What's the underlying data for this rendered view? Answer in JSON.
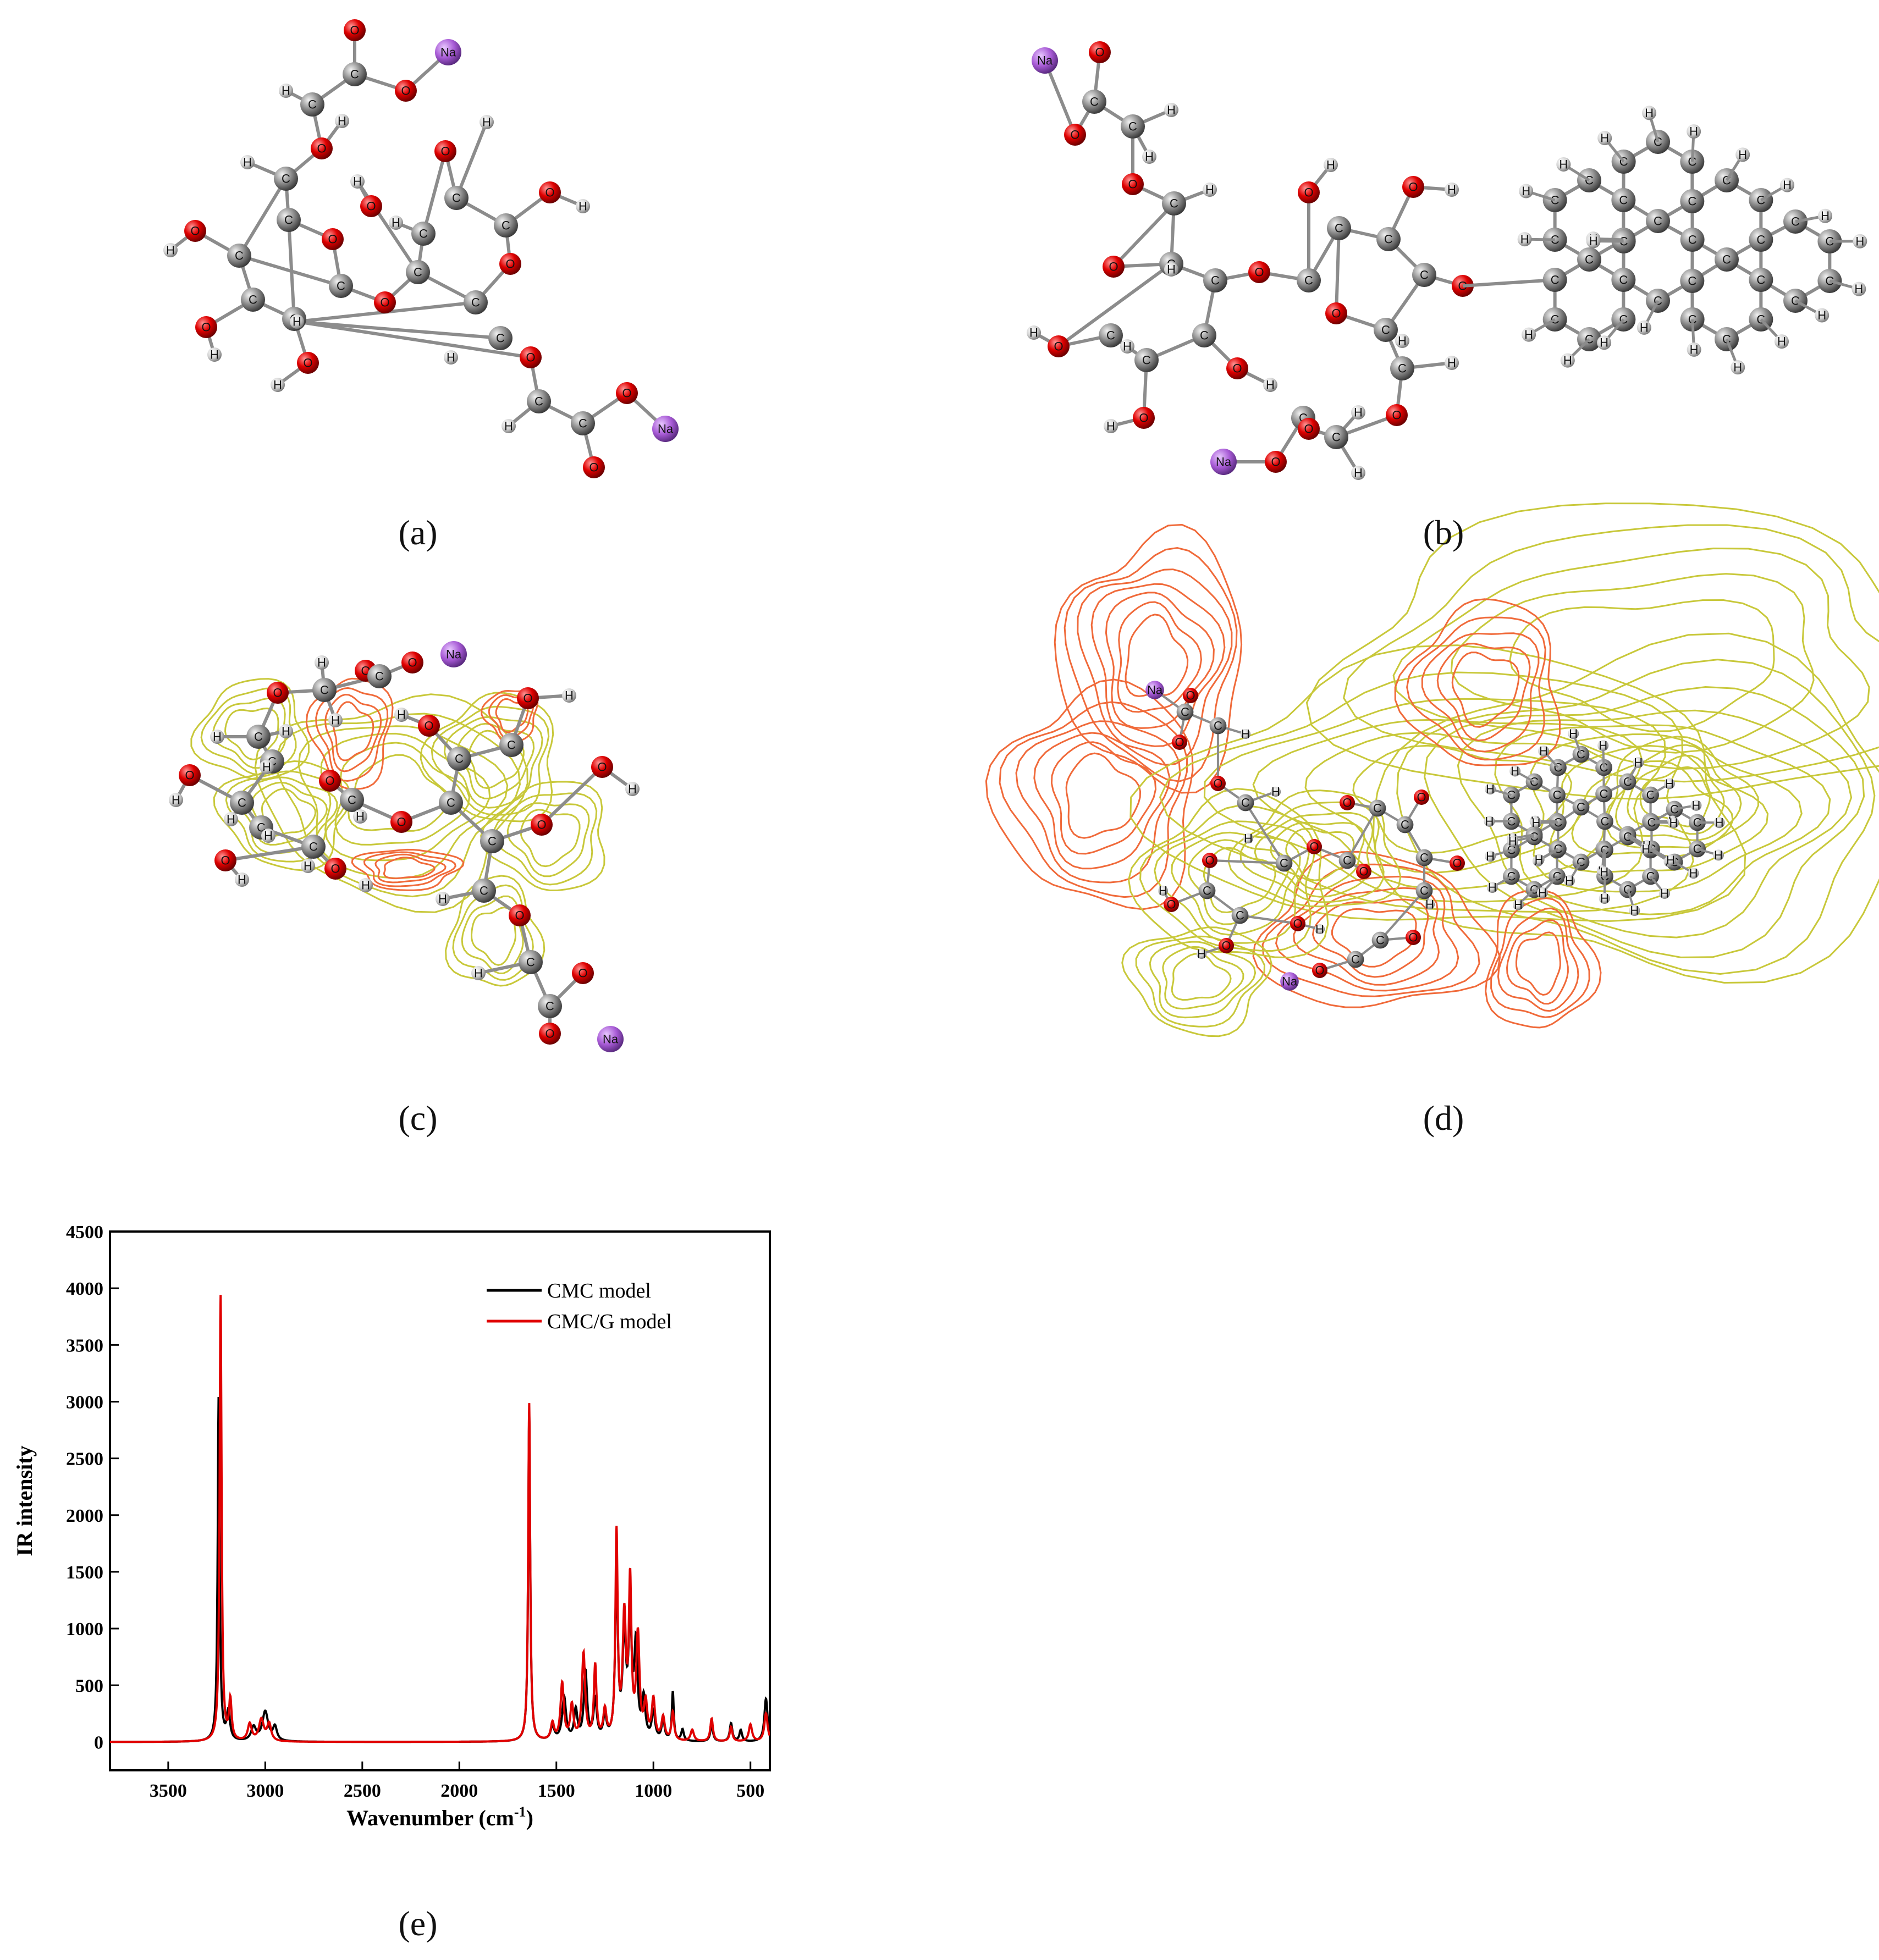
{
  "panels": {
    "a": {
      "label": "(a)"
    },
    "b": {
      "label": "(b)"
    },
    "c": {
      "label": "(c)"
    },
    "d": {
      "label": "(d)"
    },
    "e": {
      "label": "(e)"
    }
  },
  "atom_symbols": {
    "carbon": "C",
    "oxygen": "O",
    "hydrogen": "H",
    "sodium": "Na"
  },
  "atom_colors": {
    "carbon": "#7a7a7a",
    "oxygen": "#e00000",
    "hydrogen": "#d8d8d8",
    "sodium": "#a85bd6"
  },
  "contour_colors": {
    "positive": "#c8c83a",
    "negative": "#f06a3a"
  },
  "chart_data": {
    "type": "line",
    "xlabel": "Wavenumber (cm-1)",
    "xlabel_main": "Wavenumber (cm",
    "xlabel_sup": "-1",
    "xlabel_close": ")",
    "ylabel": "IR intensity",
    "xlim": [
      3800,
      400
    ],
    "ylim": [
      -250,
      4500
    ],
    "x_reversed": true,
    "xticks": [
      3500,
      3000,
      2500,
      2000,
      1500,
      1000,
      500
    ],
    "yticks": [
      0,
      500,
      1000,
      1500,
      2000,
      2500,
      3000,
      3500,
      4000,
      4500
    ],
    "legend_position": "top-right",
    "grid": false,
    "series": [
      {
        "name": "CMC model",
        "color": "#000000",
        "peaks": [
          [
            3240,
            3050,
            6
          ],
          [
            3190,
            250,
            10
          ],
          [
            3060,
            120,
            15
          ],
          [
            3000,
            260,
            18
          ],
          [
            2950,
            120,
            12
          ],
          [
            1640,
            2900,
            6
          ],
          [
            1520,
            120,
            12
          ],
          [
            1460,
            380,
            12
          ],
          [
            1400,
            260,
            10
          ],
          [
            1350,
            600,
            10
          ],
          [
            1300,
            350,
            10
          ],
          [
            1250,
            200,
            10
          ],
          [
            1190,
            1500,
            8
          ],
          [
            1150,
            900,
            10
          ],
          [
            1120,
            1000,
            10
          ],
          [
            1090,
            800,
            10
          ],
          [
            1050,
            350,
            10
          ],
          [
            1000,
            250,
            10
          ],
          [
            950,
            200,
            8
          ],
          [
            900,
            430,
            6
          ],
          [
            850,
            100,
            8
          ],
          [
            700,
            150,
            8
          ],
          [
            600,
            160,
            8
          ],
          [
            550,
            100,
            8
          ],
          [
            420,
            380,
            10
          ]
        ]
      },
      {
        "name": "CMC/G model",
        "color": "#e00000",
        "peaks": [
          [
            3230,
            3930,
            6
          ],
          [
            3180,
            350,
            8
          ],
          [
            3080,
            150,
            12
          ],
          [
            3020,
            190,
            15
          ],
          [
            2980,
            150,
            12
          ],
          [
            1640,
            2980,
            6
          ],
          [
            1520,
            150,
            10
          ],
          [
            1470,
            500,
            10
          ],
          [
            1420,
            300,
            10
          ],
          [
            1360,
            760,
            10
          ],
          [
            1300,
            650,
            8
          ],
          [
            1250,
            250,
            10
          ],
          [
            1190,
            1800,
            7
          ],
          [
            1150,
            1050,
            10
          ],
          [
            1120,
            1350,
            8
          ],
          [
            1080,
            900,
            10
          ],
          [
            1040,
            300,
            10
          ],
          [
            1000,
            350,
            10
          ],
          [
            950,
            200,
            10
          ],
          [
            900,
            250,
            8
          ],
          [
            800,
            100,
            10
          ],
          [
            700,
            200,
            8
          ],
          [
            600,
            130,
            8
          ],
          [
            500,
            150,
            10
          ],
          [
            420,
            250,
            10
          ]
        ]
      }
    ]
  }
}
